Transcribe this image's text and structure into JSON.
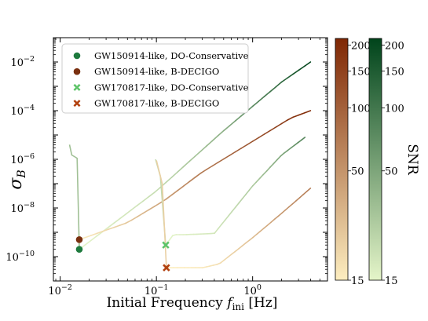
{
  "chart_data": {
    "type": "line",
    "xlabel": "Initial Frequency",
    "xlabel_symbol": "f",
    "xlabel_sub": "ini",
    "xlabel_unit": "[Hz]",
    "ylabel_symbol": "σ",
    "ylabel_sub": "B",
    "xscale": "log",
    "yscale": "log",
    "xlim": [
      0.0085,
      6
    ],
    "ylim": [
      1e-11,
      0.1
    ],
    "x_ticks": [
      {
        "v": 0.01,
        "base": "10",
        "exp": "−2"
      },
      {
        "v": 0.1,
        "base": "10",
        "exp": "−1"
      },
      {
        "v": 1,
        "base": "10",
        "exp": "0"
      }
    ],
    "y_ticks": [
      {
        "v": 1e-10,
        "base": "10",
        "exp": "−10"
      },
      {
        "v": 1e-08,
        "base": "10",
        "exp": "−8"
      },
      {
        "v": 1e-06,
        "base": "10",
        "exp": "−6"
      },
      {
        "v": 0.0001,
        "base": "10",
        "exp": "−4"
      },
      {
        "v": 0.01,
        "base": "10",
        "exp": "−2"
      }
    ],
    "legend": {
      "placement": "top-left",
      "entries": [
        {
          "label": "GW150914-like, DO-Conservative",
          "marker": "circle",
          "color": "#1e7a3e"
        },
        {
          "label": "GW150914-like, B-DECIGO",
          "marker": "circle",
          "color": "#7a3010"
        },
        {
          "label": "GW170817-like, DO-Conservative",
          "marker": "x",
          "color": "#5fc46a"
        },
        {
          "label": "GW170817-like, B-DECIGO",
          "marker": "x",
          "color": "#b2410f"
        }
      ]
    },
    "series": [
      {
        "detector": "DO-Conservative",
        "source": "GW150914-like",
        "points": [
          [
            0.0125,
            4e-06
          ],
          [
            0.0132,
            1.5e-06
          ],
          [
            0.0145,
            1.2e-06
          ],
          [
            0.015,
            1.1e-06
          ],
          [
            0.0158,
            2e-10
          ]
        ],
        "segments": [
          {
            "x": [
              0.0158,
              0.1,
              0.5,
              1.0,
              2.0,
              4.0
            ],
            "y": [
              2e-10,
              5e-08,
              1.5e-05,
              0.00015,
              0.0015,
              0.01
            ],
            "snr": [
              15,
              40,
              90,
              130,
              170,
              210
            ]
          }
        ],
        "marker": {
          "x": 0.0158,
          "y": 2e-10,
          "shape": "circle",
          "color": "#1e7a3e"
        }
      },
      {
        "detector": "B-DECIGO",
        "source": "GW150914-like",
        "points": [
          [
            0.0158,
            5e-10
          ]
        ],
        "segments": [
          {
            "x": [
              0.0158,
              0.05,
              0.12,
              0.3,
              1.0,
              2.5,
              4.0
            ],
            "y": [
              5e-10,
              2.5e-09,
              2e-08,
              3e-07,
              5.5e-06,
              5e-05,
              0.0001
            ],
            "snr": [
              15,
              50,
              90,
              130,
              170,
              200,
              210
            ]
          }
        ],
        "marker": {
          "x": 0.0158,
          "y": 5e-10,
          "shape": "circle",
          "color": "#7a3010"
        }
      },
      {
        "detector": "DO-Conservative",
        "source": "GW170817-like",
        "points": [
          [
            0.098,
            1e-06
          ],
          [
            0.11,
            2e-07
          ],
          [
            0.125,
            3e-10
          ]
        ],
        "segments": [
          {
            "x": [
              0.125,
              0.15,
              0.2,
              0.4,
              1.0,
              2.0,
              3.5
            ],
            "y": [
              3e-10,
              8e-10,
              8e-10,
              9e-10,
              8e-08,
              1.5e-06,
              8e-06
            ],
            "snr": [
              15,
              18,
              22,
              30,
              60,
              100,
              140
            ]
          }
        ],
        "marker": {
          "x": 0.125,
          "y": 3e-10,
          "shape": "x",
          "color": "#5fc46a"
        }
      },
      {
        "detector": "B-DECIGO",
        "source": "GW170817-like",
        "points": [
          [
            0.1,
            9e-07
          ],
          [
            0.115,
            1e-07
          ],
          [
            0.127,
            3.5e-11
          ]
        ],
        "segments": [
          {
            "x": [
              0.127,
              0.3,
              0.45,
              1.0,
              2.0,
              4.0
            ],
            "y": [
              3.5e-11,
              3.5e-11,
              5e-11,
              6e-10,
              6e-09,
              6.5e-08
            ],
            "snr": [
              15,
              20,
              30,
              60,
              100,
              130
            ]
          }
        ],
        "marker": {
          "x": 0.127,
          "y": 3.5e-11,
          "shape": "x",
          "color": "#b2410f"
        }
      }
    ],
    "colorbars": [
      {
        "name": "B-DECIGO",
        "colormap": "Oranges",
        "color_low": "#fdeec0",
        "color_high": "#7f2704",
        "range": [
          15,
          215
        ],
        "ticks": [
          {
            "v": 15,
            "label": "15"
          },
          {
            "v": 50,
            "label": "50"
          },
          {
            "v": 100,
            "label": "100"
          },
          {
            "v": 150,
            "label": "150"
          },
          {
            "v": 200,
            "label": "200"
          }
        ]
      },
      {
        "name": "DO-Conservative",
        "colormap": "Greens",
        "color_low": "#e5f5c9",
        "color_high": "#00441b",
        "range": [
          15,
          215
        ],
        "ticks": [
          {
            "v": 15,
            "label": "15"
          },
          {
            "v": 50,
            "label": "50"
          },
          {
            "v": 100,
            "label": "100"
          },
          {
            "v": 150,
            "label": "150"
          },
          {
            "v": 200,
            "label": "200"
          }
        ],
        "label": "SNR"
      }
    ]
  }
}
